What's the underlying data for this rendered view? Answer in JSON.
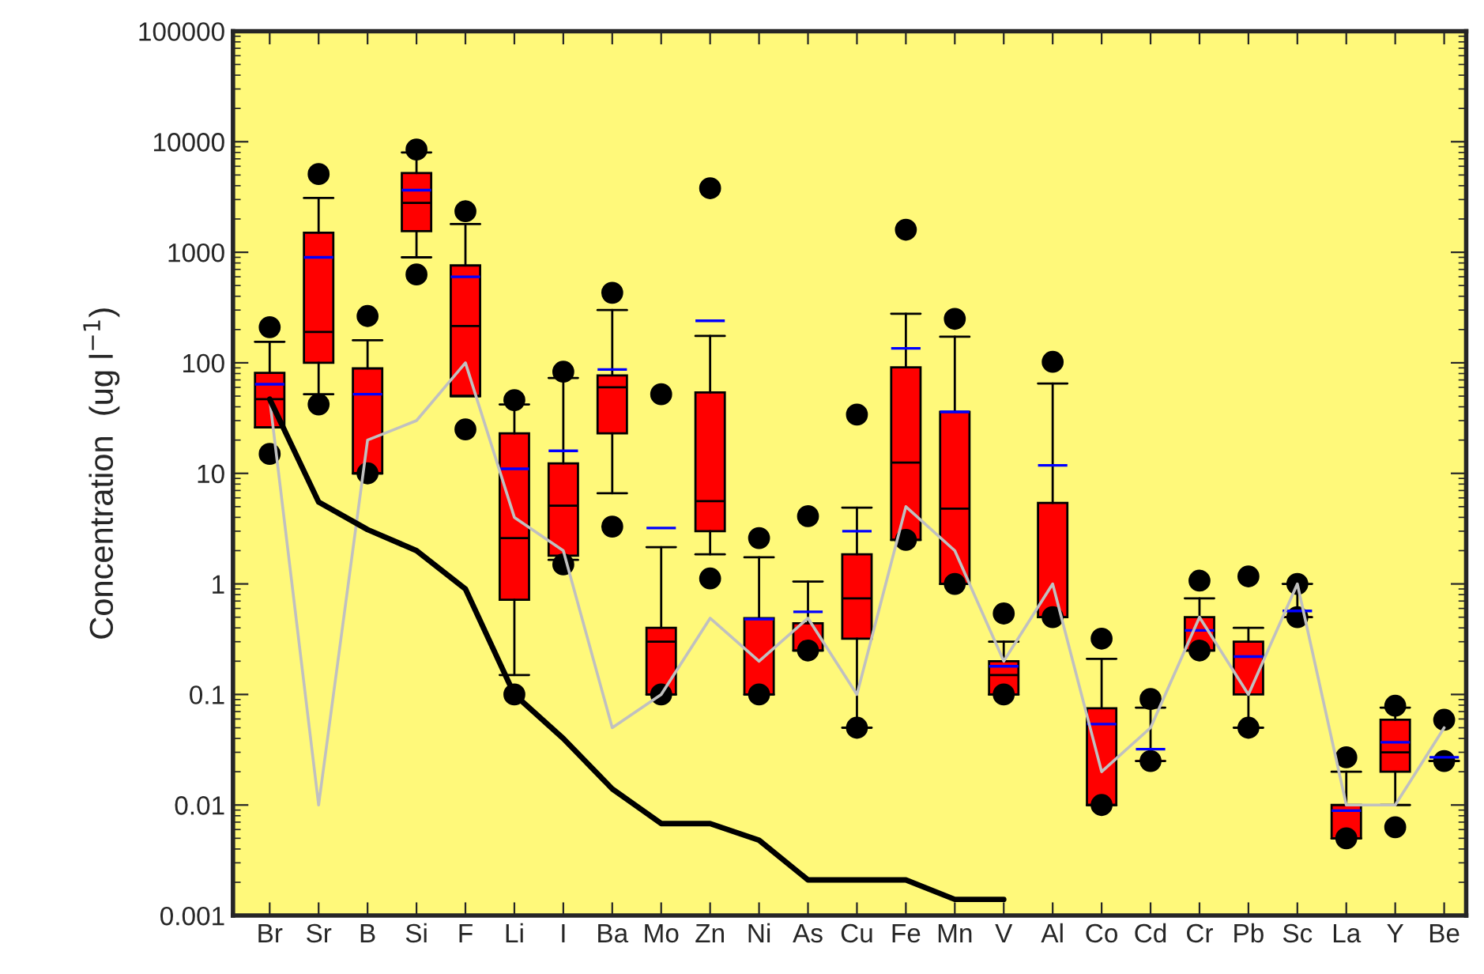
{
  "chart_data": {
    "type": "box",
    "ylabel": "Concentration  (ug l$^{−1}$)",
    "categories": [
      "Br",
      "Sr",
      "B",
      "Si",
      "F",
      "Li",
      "I",
      "Ba",
      "Mo",
      "Zn",
      "Ni",
      "As",
      "Cu",
      "Fe",
      "Mn",
      "V",
      "Al",
      "Co",
      "Cd",
      "Cr",
      "Pb",
      "Sc",
      "La",
      "Y",
      "Be"
    ],
    "log": true,
    "ylim": [
      0.001,
      100000
    ],
    "yticks": [
      0.001,
      0.01,
      0.1,
      1,
      10,
      100,
      1000,
      10000,
      100000
    ],
    "grid": false,
    "legend": false,
    "color": "#ff0000",
    "boxes": [
      {
        "low": 26,
        "q1": 26,
        "median": 47,
        "q3": 81,
        "high": 155,
        "mean": 64,
        "outliers": [
          210,
          15
        ]
      },
      {
        "low": 52,
        "q1": 100,
        "median": 190,
        "q3": 1500,
        "high": 3100,
        "mean": 900,
        "outliers": [
          5100,
          42
        ]
      },
      {
        "low": 10,
        "q1": 10,
        "median": 10,
        "q3": 89,
        "high": 160,
        "mean": 52,
        "outliers": [
          265,
          10
        ]
      },
      {
        "low": 900,
        "q1": 1550,
        "median": 2800,
        "q3": 5200,
        "high": 8000,
        "mean": 3650,
        "outliers": [
          8500,
          630
        ]
      },
      {
        "low": 50,
        "q1": 50,
        "median": 215,
        "q3": 760,
        "high": 1800,
        "mean": 600,
        "outliers": [
          2350,
          25
        ]
      },
      {
        "low": 0.15,
        "q1": 0.72,
        "median": 2.6,
        "q3": 23,
        "high": 42,
        "mean": 11,
        "outliers": [
          46,
          0.1
        ]
      },
      {
        "low": 1.65,
        "q1": 1.8,
        "median": 5.1,
        "q3": 12.3,
        "high": 73,
        "mean": 16,
        "outliers": [
          83,
          1.5
        ]
      },
      {
        "low": 6.6,
        "q1": 23,
        "median": 60,
        "q3": 77,
        "high": 300,
        "mean": 87,
        "outliers": [
          430,
          3.3
        ]
      },
      {
        "low": 0.1,
        "q1": 0.1,
        "median": 0.3,
        "q3": 0.4,
        "high": 2.15,
        "mean": 3.2,
        "outliers": [
          52,
          0.1
        ]
      },
      {
        "low": 1.85,
        "q1": 3.0,
        "median": 5.6,
        "q3": 54,
        "high": 175,
        "mean": 240,
        "outliers": [
          3800,
          1.12
        ]
      },
      {
        "low": 0.1,
        "q1": 0.1,
        "median": 0.1,
        "q3": 0.49,
        "high": 1.74,
        "mean": 0.48,
        "outliers": [
          2.6,
          0.1
        ]
      },
      {
        "low": 0.25,
        "q1": 0.25,
        "median": 0.25,
        "q3": 0.44,
        "high": 1.05,
        "mean": 0.56,
        "outliers": [
          4.1,
          0.25
        ]
      },
      {
        "low": 0.05,
        "q1": 0.32,
        "median": 0.74,
        "q3": 1.85,
        "high": 4.9,
        "mean": 3.0,
        "outliers": [
          34,
          0.05
        ]
      },
      {
        "low": 2.5,
        "q1": 2.5,
        "median": 12.5,
        "q3": 91,
        "high": 278,
        "mean": 135,
        "outliers": [
          1600,
          2.5
        ]
      },
      {
        "low": 1.0,
        "q1": 1.0,
        "median": 4.8,
        "q3": 36,
        "high": 172,
        "mean": 36,
        "outliers": [
          250,
          1.0
        ]
      },
      {
        "low": 0.1,
        "q1": 0.1,
        "median": 0.15,
        "q3": 0.2,
        "high": 0.3,
        "mean": 0.18,
        "outliers": [
          0.54,
          0.1
        ]
      },
      {
        "low": 0.5,
        "q1": 0.5,
        "median": 0.5,
        "q3": 5.4,
        "high": 65,
        "mean": 11.8,
        "outliers": [
          102,
          0.5
        ]
      },
      {
        "low": 0.01,
        "q1": 0.01,
        "median": 0.01,
        "q3": 0.075,
        "high": 0.21,
        "mean": 0.054,
        "outliers": [
          0.32,
          0.01
        ]
      },
      {
        "low": 0.025,
        "q1": 0.025,
        "median": 0.025,
        "q3": 0.025,
        "high": 0.076,
        "mean": 0.032,
        "outliers": [
          0.091,
          0.025
        ]
      },
      {
        "low": 0.25,
        "q1": 0.25,
        "median": 0.38,
        "q3": 0.5,
        "high": 0.74,
        "mean": 0.38,
        "outliers": [
          1.07,
          0.25
        ]
      },
      {
        "low": 0.05,
        "q1": 0.1,
        "median": 0.1,
        "q3": 0.3,
        "high": 0.4,
        "mean": 0.22,
        "outliers": [
          1.17,
          0.05
        ]
      },
      {
        "low": 0.5,
        "q1": 0.5,
        "median": 0.5,
        "q3": 0.5,
        "high": 1.0,
        "mean": 0.57,
        "outliers": [
          1.0,
          0.5
        ]
      },
      {
        "low": 0.005,
        "q1": 0.005,
        "median": 0.005,
        "q3": 0.01,
        "high": 0.02,
        "mean": 0.0089,
        "outliers": [
          0.027,
          0.005
        ]
      },
      {
        "low": 0.01,
        "q1": 0.02,
        "median": 0.03,
        "q3": 0.059,
        "high": 0.076,
        "mean": 0.037,
        "outliers": [
          0.079,
          0.0063
        ]
      },
      {
        "low": 0.025,
        "q1": 0.025,
        "median": 0.025,
        "q3": 0.025,
        "high": 0.025,
        "mean": 0.027,
        "outliers": [
          0.059,
          0.025
        ]
      }
    ],
    "series": [
      {
        "type": "line",
        "color": "#000000",
        "values": [
          47,
          5.5,
          3.1,
          2.0,
          0.9,
          0.1,
          0.04,
          0.014,
          0.0068,
          0.0068,
          0.0048,
          0.0021,
          0.0021,
          0.0021,
          0.0014,
          0.0014,
          null,
          null,
          null,
          null,
          null,
          null,
          null,
          null,
          null
        ]
      },
      {
        "type": "line",
        "color": "#c0c0c0",
        "values": [
          47,
          0.01,
          20,
          30,
          100,
          4,
          2,
          0.05,
          0.1,
          0.49,
          0.2,
          0.49,
          0.1,
          5,
          2,
          0.2,
          1.0,
          0.02,
          0.05,
          0.5,
          0.1,
          1.0,
          0.01,
          0.01,
          0.05
        ]
      }
    ]
  }
}
